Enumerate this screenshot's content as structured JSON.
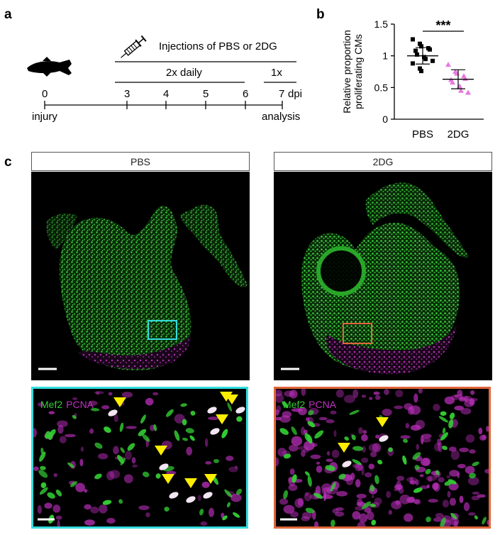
{
  "panel_labels": {
    "a": "a",
    "b": "b",
    "c": "c"
  },
  "timeline": {
    "injection_label": "Injections of PBS or 2DG",
    "daily_label": "2x daily",
    "once_label": "1x",
    "ticks": [
      "0",
      "3",
      "4",
      "5",
      "6",
      "7"
    ],
    "unit": "dpi",
    "start_label": "injury",
    "end_label": "analysis"
  },
  "chart_data": {
    "type": "scatter",
    "ylabel": "Relative proportion proliferating CMs",
    "categories": [
      "PBS",
      "2DG"
    ],
    "yticks": [
      "0",
      "0.5",
      "1",
      "1.5"
    ],
    "ylim": [
      0,
      1.5
    ],
    "significance": "***",
    "series": [
      {
        "name": "PBS",
        "marker": "square",
        "color": "#000000",
        "values": [
          1.26,
          1.19,
          1.15,
          1.12,
          1.1,
          1.08,
          1.02,
          0.98,
          0.95,
          0.92,
          0.88,
          0.8,
          0.76
        ],
        "mean": 1.0,
        "sd": 0.13
      },
      {
        "name": "2DG",
        "marker": "triangle",
        "color": "#e877e0",
        "values": [
          0.86,
          0.75,
          0.72,
          0.68,
          0.64,
          0.62,
          0.58,
          0.52,
          0.45,
          0.42
        ],
        "mean": 0.63,
        "sd": 0.15
      }
    ]
  },
  "microscopy": {
    "pbs_header": "PBS",
    "dg_header": "2DG",
    "zoom_label_mef2": "Mef2",
    "zoom_label_pcna": "PCNA",
    "colors": {
      "mef2": "#33cc33",
      "pcna": "#c030c0",
      "pbs_box": "#33dde0",
      "dg_box": "#e0663a",
      "arrow": "#ffee00"
    }
  }
}
